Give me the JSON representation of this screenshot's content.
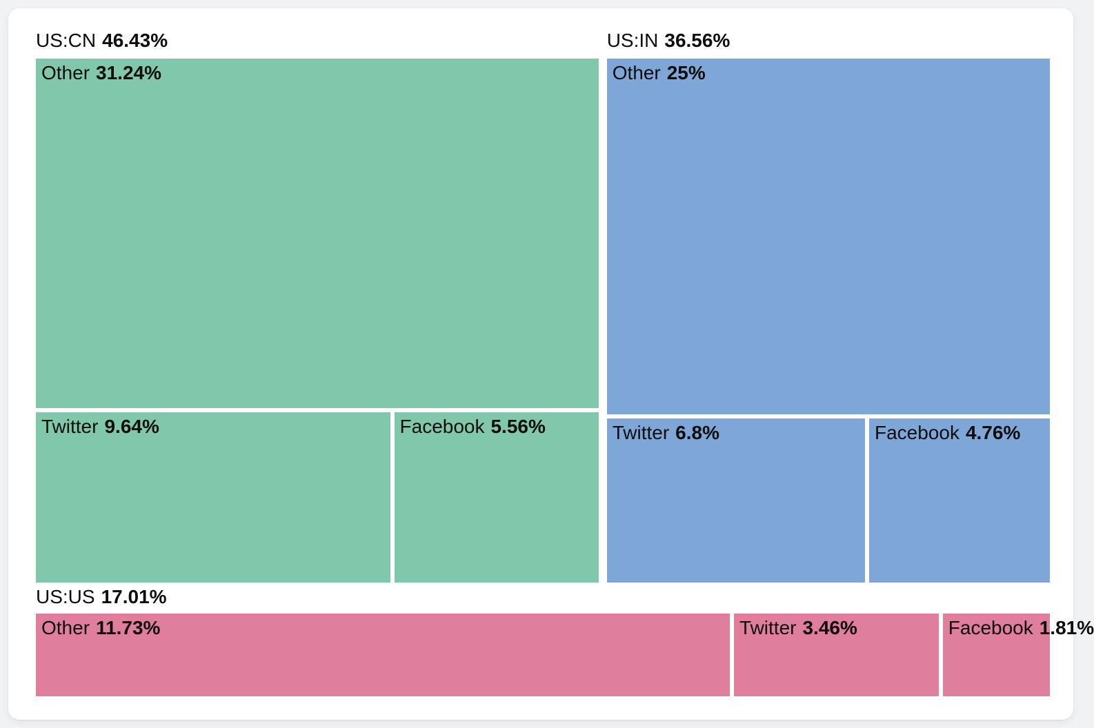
{
  "chart_data": {
    "type": "treemap",
    "title": "",
    "legend": "none",
    "value_format": "percent",
    "groups": [
      {
        "name": "US:CN",
        "percent": "46.43%",
        "value": 46.43,
        "color": "#81C7AB",
        "children": [
          {
            "name": "Other",
            "percent": "31.24%",
            "value": 31.24
          },
          {
            "name": "Twitter",
            "percent": "9.64%",
            "value": 9.64
          },
          {
            "name": "Facebook",
            "percent": "5.56%",
            "value": 5.56
          }
        ]
      },
      {
        "name": "US:IN",
        "percent": "36.56%",
        "value": 36.56,
        "color": "#7EA6D7",
        "children": [
          {
            "name": "Other",
            "percent": "25%",
            "value": 25
          },
          {
            "name": "Twitter",
            "percent": "6.8%",
            "value": 6.8
          },
          {
            "name": "Facebook",
            "percent": "4.76%",
            "value": 4.76
          }
        ]
      },
      {
        "name": "US:US",
        "percent": "17.01%",
        "value": 17.01,
        "color": "#E07E9D",
        "children": [
          {
            "name": "Other",
            "percent": "11.73%",
            "value": 11.73
          },
          {
            "name": "Twitter",
            "percent": "3.46%",
            "value": 3.46
          },
          {
            "name": "Facebook",
            "percent": "1.81%",
            "value": 1.81
          }
        ]
      }
    ]
  }
}
